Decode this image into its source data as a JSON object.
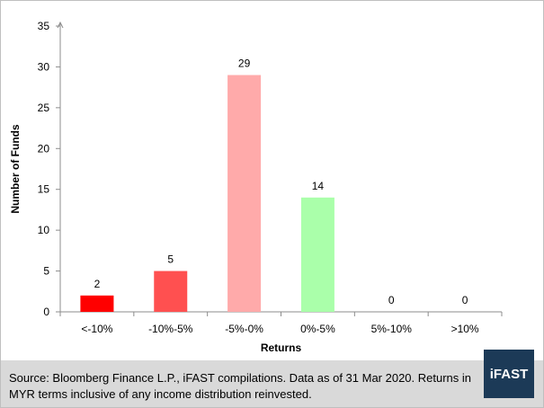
{
  "chart_data": {
    "type": "bar",
    "categories": [
      "<-10%",
      "-10%-5%",
      "-5%-0%",
      "0%-5%",
      "5%-10%",
      ">10%"
    ],
    "values": [
      2,
      5,
      29,
      14,
      0,
      0
    ],
    "data_labels": [
      "2",
      "5",
      "29",
      "14",
      "0",
      "0"
    ],
    "bar_colors": [
      "#ff0000",
      "#ff5050",
      "#ffaaaa",
      "#aaffaa",
      "#aaffaa",
      "#aaffaa"
    ],
    "xlabel": "Returns",
    "ylabel": "Number of Funds",
    "ylim": [
      0,
      35
    ],
    "yticks": [
      "0",
      "5",
      "10",
      "15",
      "20",
      "25",
      "30",
      "35"
    ],
    "grid": false,
    "legend": "none"
  },
  "footer": {
    "source_text": "Source: Bloomberg Finance L.P., iFAST compilations. Data as of 31 Mar 2020.  Returns in MYR terms inclusive of any income distribution reinvested."
  },
  "logo": {
    "text": "iFAST",
    "color": "#1c3a57"
  }
}
